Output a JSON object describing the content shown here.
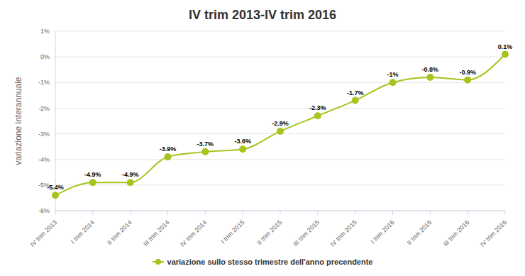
{
  "chart_data": {
    "type": "line",
    "title": "IV trim 2013-IV trim 2016",
    "y_label": "variazione interannuale",
    "categories": [
      "IV trim 2013",
      "I trim 2014",
      "II trim 2014",
      "III trim 2014",
      "IV trim 2014",
      "I trim 2015",
      "II trim 2015",
      "III trim 2015",
      "IV trim 2015",
      "I trim 2016",
      "II trim 2016",
      "III trim 2016",
      "IV trim 2016"
    ],
    "series": [
      {
        "name": "variazione sullo stesso trimestre dell'anno precendente",
        "color": "#a6c41c",
        "values": [
          -5.4,
          -4.9,
          -4.9,
          -3.9,
          -3.7,
          -3.6,
          -2.9,
          -2.3,
          -1.7,
          -1,
          -0.8,
          -0.9,
          0.1
        ],
        "value_labels": [
          "-5.4%",
          "-4.9%",
          "-4.9%",
          "-3.9%",
          "-3.7%",
          "-3.6%",
          "-2.9%",
          "-2.3%",
          "-1.7%",
          "-1%",
          "-0.8%",
          "-0.9%",
          "0.1%"
        ],
        "marker": "circle",
        "line_style": "smooth"
      }
    ],
    "ylim": [
      -6,
      1
    ],
    "yticks": [
      {
        "value": -6,
        "label": "-6%"
      },
      {
        "value": -5,
        "label": "-5%"
      },
      {
        "value": -4,
        "label": "-4%"
      },
      {
        "value": -3,
        "label": "-3%"
      },
      {
        "value": -2,
        "label": "-2%"
      },
      {
        "value": -1,
        "label": "-1%"
      },
      {
        "value": 0,
        "label": "0%"
      },
      {
        "value": 1,
        "label": "1%"
      }
    ],
    "grid": true,
    "legend": "bottom",
    "data_labels": true
  }
}
